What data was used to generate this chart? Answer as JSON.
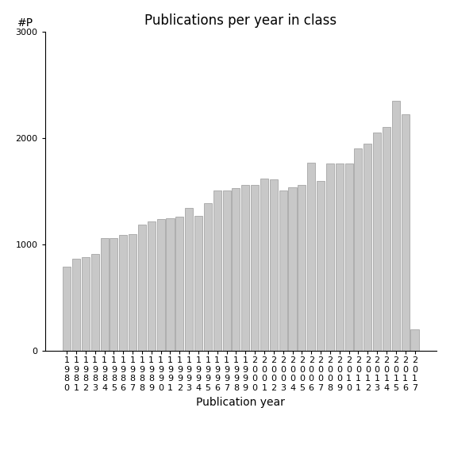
{
  "title": "Publications per year in class",
  "xlabel": "Publication year",
  "ylabel": "#P",
  "years": [
    1980,
    1981,
    1982,
    1983,
    1984,
    1985,
    1986,
    1987,
    1988,
    1989,
    1990,
    1991,
    1992,
    1993,
    1994,
    1995,
    1996,
    1997,
    1998,
    1999,
    2000,
    2001,
    2002,
    2003,
    2004,
    2005,
    2006,
    2007,
    2008,
    2009,
    2010,
    2011,
    2012,
    2013,
    2014,
    2015,
    2016,
    2017
  ],
  "values": [
    790,
    870,
    880,
    910,
    1060,
    1060,
    1090,
    1100,
    1190,
    1220,
    1240,
    1250,
    1260,
    1340,
    1270,
    1390,
    1510,
    1510,
    1530,
    1560,
    1560,
    1620,
    1610,
    1510,
    1540,
    1560,
    1770,
    1600,
    1760,
    1760,
    1760,
    1900,
    1950,
    2050,
    2100,
    2350,
    2220,
    200
  ],
  "bar_color": "#c8c8c8",
  "bar_edgecolor": "#999999",
  "ylim": [
    0,
    3000
  ],
  "yticks": [
    0,
    1000,
    2000,
    3000
  ],
  "background_color": "#ffffff",
  "title_fontsize": 12,
  "axis_fontsize": 10,
  "tick_label_fontsize": 8
}
